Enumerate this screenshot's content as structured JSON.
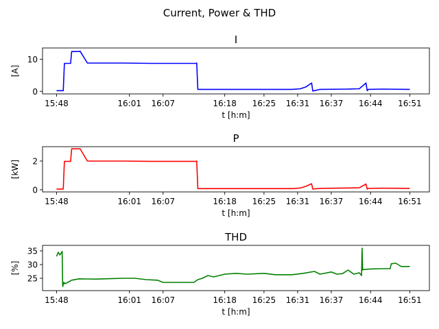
{
  "figure": {
    "title": "Current, Power & THD"
  },
  "chart_data": [
    {
      "type": "line",
      "title": "I",
      "xlabel": "t [h:m]",
      "ylabel": "[A]",
      "color": "#0000ff",
      "x_ticks": [
        "15:48",
        "16:01",
        "16:07",
        "16:18",
        "16:25",
        "16:31",
        "16:37",
        "16:44",
        "16:51"
      ],
      "x_tick_minutes": [
        948,
        961,
        967,
        978,
        985,
        991,
        997,
        1004,
        1011
      ],
      "xlim_minutes": [
        945.5,
        1014.5
      ],
      "ylim": [
        -0.8,
        13.5
      ],
      "y_ticks": [
        0,
        10
      ],
      "grid": false,
      "series": [
        {
          "x_minutes": [
            948,
            949.2,
            949.4,
            949.6,
            950.5,
            950.7,
            952,
            952.2,
            953.5,
            955,
            960,
            965,
            970,
            972.9,
            973,
            973.2,
            980,
            985,
            990,
            991.5,
            992.5,
            993.5,
            993.7,
            995,
            1000,
            1002,
            1003.2,
            1003.4,
            1003.6,
            1006,
            1011
          ],
          "values": [
            0.2,
            0.2,
            8.7,
            8.7,
            8.7,
            12.4,
            12.4,
            12.5,
            8.8,
            8.8,
            8.8,
            8.7,
            8.7,
            8.7,
            8.8,
            0.6,
            0.6,
            0.6,
            0.6,
            0.8,
            1.4,
            2.6,
            0.1,
            0.6,
            0.7,
            0.8,
            2.6,
            0.2,
            0.6,
            0.7,
            0.6
          ]
        }
      ]
    },
    {
      "type": "line",
      "title": "P",
      "xlabel": "t [h:m]",
      "ylabel": "[kW]",
      "color": "#ff0000",
      "x_ticks": [
        "15:48",
        "16:01",
        "16:07",
        "16:18",
        "16:25",
        "16:31",
        "16:37",
        "16:44",
        "16:51"
      ],
      "x_tick_minutes": [
        948,
        961,
        967,
        978,
        985,
        991,
        997,
        1004,
        1011
      ],
      "xlim_minutes": [
        945.5,
        1014.5
      ],
      "ylim": [
        -0.15,
        3.0
      ],
      "y_ticks": [
        0,
        2
      ],
      "grid": false,
      "series": [
        {
          "x_minutes": [
            948,
            949.2,
            949.4,
            949.6,
            950.5,
            950.7,
            952,
            952.2,
            953.5,
            955,
            960,
            965,
            970,
            972.9,
            973,
            973.2,
            980,
            985,
            990,
            991.5,
            992.5,
            993.5,
            993.7,
            995,
            1000,
            1002,
            1003.2,
            1003.4,
            1003.6,
            1006,
            1011
          ],
          "values": [
            0.05,
            0.05,
            1.98,
            1.98,
            1.98,
            2.85,
            2.85,
            2.85,
            2.0,
            2.0,
            2.0,
            1.98,
            1.98,
            1.98,
            2.0,
            0.08,
            0.08,
            0.08,
            0.08,
            0.12,
            0.25,
            0.42,
            0.05,
            0.1,
            0.12,
            0.14,
            0.4,
            0.05,
            0.1,
            0.11,
            0.1
          ]
        }
      ]
    },
    {
      "type": "line",
      "title": "THD",
      "xlabel": "t [h:m]",
      "ylabel": "[%]",
      "color": "#008000",
      "x_ticks": [
        "15:48",
        "16:01",
        "16:07",
        "16:18",
        "16:25",
        "16:31",
        "16:37",
        "16:44",
        "16:51"
      ],
      "x_tick_minutes": [
        948,
        961,
        967,
        978,
        985,
        991,
        997,
        1004,
        1011
      ],
      "xlim_minutes": [
        945.5,
        1014.5
      ],
      "ylim": [
        20.5,
        37.0
      ],
      "y_ticks": [
        25,
        30,
        35
      ],
      "grid": false,
      "series": [
        {
          "x_minutes": [
            948,
            948.3,
            948.6,
            949,
            949.1,
            949.3,
            949.5,
            950,
            950.7,
            952,
            955,
            958,
            960,
            962,
            964,
            966,
            967,
            970,
            972.5,
            973.2,
            974,
            975,
            976,
            977,
            978,
            980,
            982,
            985,
            987,
            990,
            992,
            994,
            995,
            997,
            998,
            999,
            1000,
            1001,
            1002,
            1002.4,
            1002.5,
            1002.6,
            1002.8,
            1004,
            1006,
            1007.5,
            1007.7,
            1008.5,
            1009.3,
            1009.5,
            1011
          ],
          "values": [
            33.0,
            34.5,
            33.5,
            34.8,
            22.0,
            23.5,
            23.0,
            23.5,
            24.3,
            24.8,
            24.7,
            24.9,
            25.0,
            25.0,
            24.5,
            24.3,
            23.5,
            23.5,
            23.5,
            24.5,
            25.0,
            26.0,
            25.5,
            26.0,
            26.5,
            26.8,
            26.5,
            26.8,
            26.3,
            26.3,
            26.8,
            27.5,
            26.5,
            27.3,
            26.5,
            26.7,
            28.0,
            26.5,
            27.0,
            26.0,
            36.0,
            28.0,
            28.2,
            28.4,
            28.5,
            28.5,
            30.3,
            30.5,
            29.5,
            29.3,
            29.3
          ]
        }
      ]
    }
  ]
}
